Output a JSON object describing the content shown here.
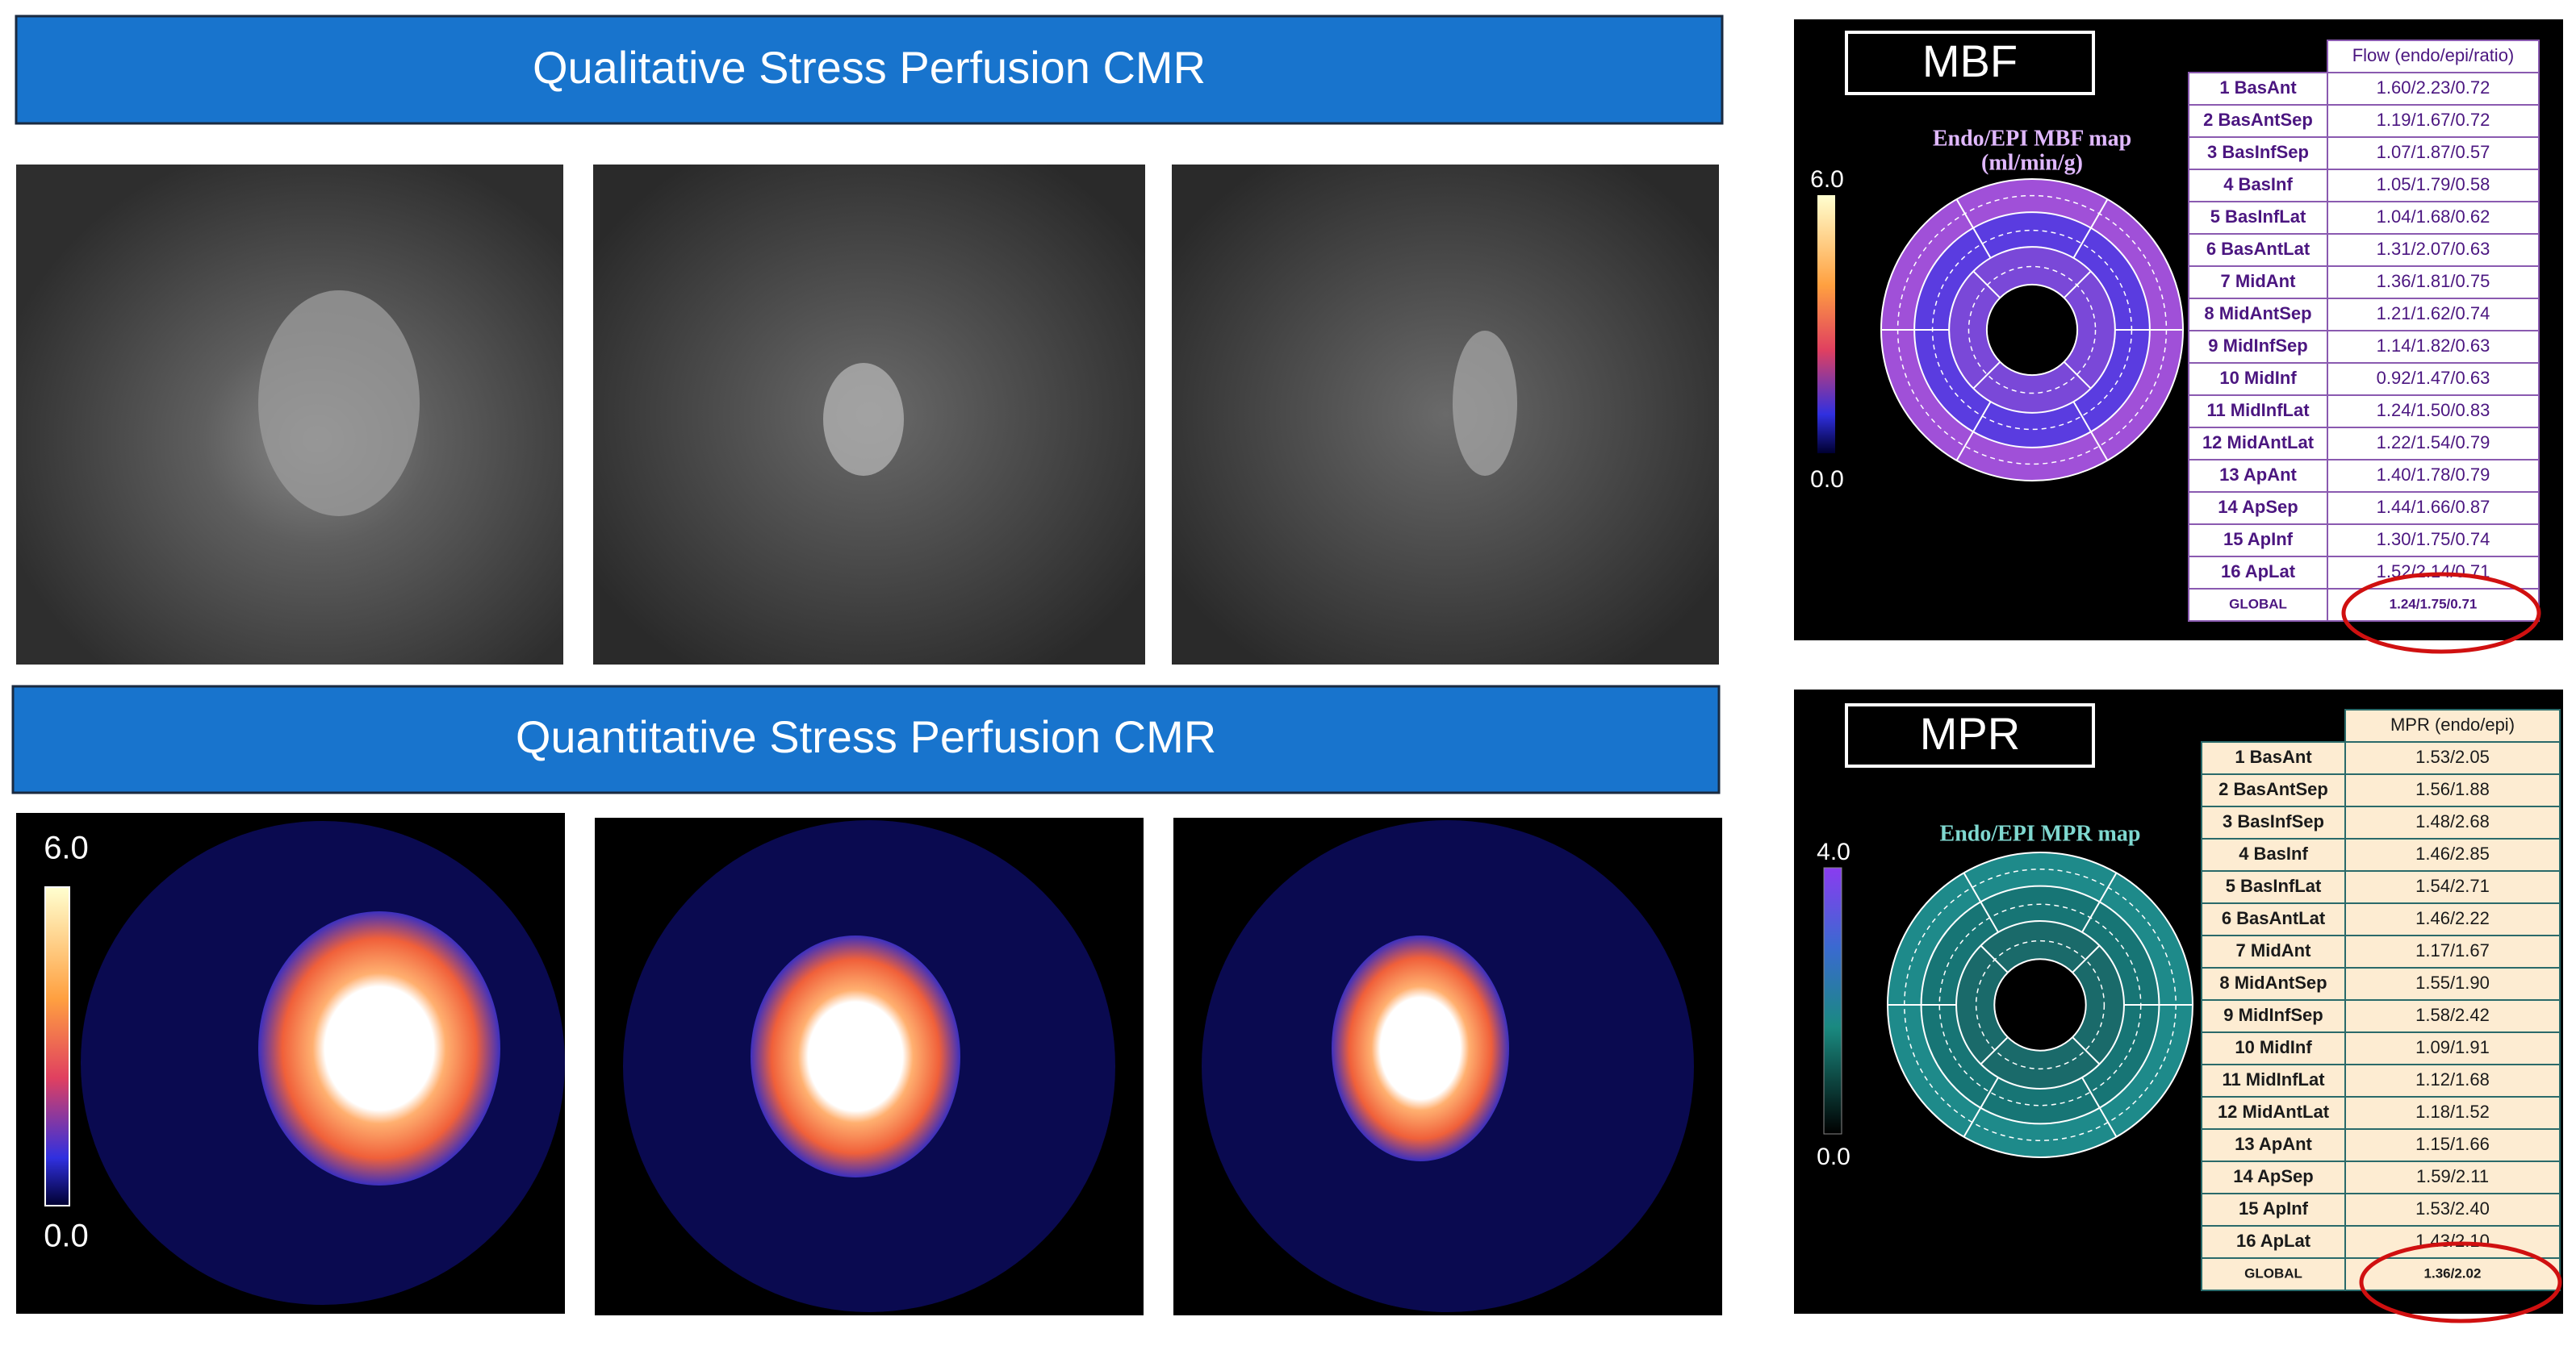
{
  "banners": [
    "Qualitative Stress Perfusion CMR",
    "Quantitative Stress Perfusion CMR"
  ],
  "quantitative_scale": {
    "max": "6.0",
    "min": "0.0"
  },
  "mbf": {
    "title": "MBF",
    "map_title": "Endo/EPI MBF map",
    "map_unit": "(ml/min/g)",
    "scale_max": "6.0",
    "scale_min": "0.0",
    "table": {
      "header": "Flow (endo/epi/ratio)",
      "rows": [
        [
          "1 BasAnt",
          "1.60/2.23/0.72"
        ],
        [
          "2 BasAntSep",
          "1.19/1.67/0.72"
        ],
        [
          "3 BasInfSep",
          "1.07/1.87/0.57"
        ],
        [
          "4 BasInf",
          "1.05/1.79/0.58"
        ],
        [
          "5 BasInfLat",
          "1.04/1.68/0.62"
        ],
        [
          "6 BasAntLat",
          "1.31/2.07/0.63"
        ],
        [
          "7 MidAnt",
          "1.36/1.81/0.75"
        ],
        [
          "8 MidAntSep",
          "1.21/1.62/0.74"
        ],
        [
          "9 MidInfSep",
          "1.14/1.82/0.63"
        ],
        [
          "10 MidInf",
          "0.92/1.47/0.63"
        ],
        [
          "11 MidInfLat",
          "1.24/1.50/0.83"
        ],
        [
          "12 MidAntLat",
          "1.22/1.54/0.79"
        ],
        [
          "13 ApAnt",
          "1.40/1.78/0.79"
        ],
        [
          "14 ApSep",
          "1.44/1.66/0.87"
        ],
        [
          "15 ApInf",
          "1.30/1.75/0.74"
        ],
        [
          "16 ApLat",
          "1.52/2.14/0.71"
        ],
        [
          "GLOBAL",
          "1.24/1.75/0.71"
        ]
      ]
    }
  },
  "mpr": {
    "title": "MPR",
    "map_title": "Endo/EPI MPR map",
    "scale_max": "4.0",
    "scale_min": "0.0",
    "table": {
      "header": "MPR (endo/epi)",
      "rows": [
        [
          "1 BasAnt",
          "1.53/2.05"
        ],
        [
          "2 BasAntSep",
          "1.56/1.88"
        ],
        [
          "3 BasInfSep",
          "1.48/2.68"
        ],
        [
          "4 BasInf",
          "1.46/2.85"
        ],
        [
          "5 BasInfLat",
          "1.54/2.71"
        ],
        [
          "6 BasAntLat",
          "1.46/2.22"
        ],
        [
          "7 MidAnt",
          "1.17/1.67"
        ],
        [
          "8 MidAntSep",
          "1.55/1.90"
        ],
        [
          "9 MidInfSep",
          "1.58/2.42"
        ],
        [
          "10 MidInf",
          "1.09/1.91"
        ],
        [
          "11 MidInfLat",
          "1.12/1.68"
        ],
        [
          "12 MidAntLat",
          "1.18/1.52"
        ],
        [
          "13 ApAnt",
          "1.15/1.66"
        ],
        [
          "14 ApSep",
          "1.59/2.11"
        ],
        [
          "15 ApInf",
          "1.53/2.40"
        ],
        [
          "16 ApLat",
          "1.43/2.10"
        ],
        [
          "GLOBAL",
          "1.36/2.02"
        ]
      ]
    }
  }
}
